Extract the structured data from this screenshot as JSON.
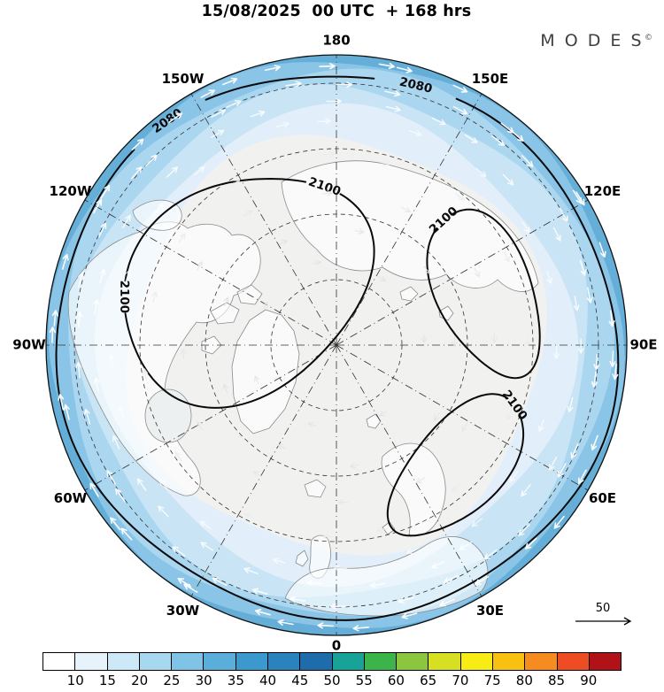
{
  "header": {
    "title": "15/08/2025  00 UTC  + 168 hrs",
    "brand": "M O D E S",
    "brand_mark": "©"
  },
  "map": {
    "longitude_labels": [
      "180",
      "150W",
      "150E",
      "120W",
      "120E",
      "90W",
      "90E",
      "60W",
      "60E",
      "30W",
      "30E",
      "0"
    ],
    "contour_labels": {
      "outer": "2080",
      "inner": "2100"
    },
    "reference_arrow": {
      "label": "50"
    }
  },
  "colorbar": {
    "tick_labels": [
      "10",
      "15",
      "20",
      "25",
      "30",
      "35",
      "40",
      "45",
      "50",
      "55",
      "60",
      "65",
      "70",
      "75",
      "80",
      "85",
      "90"
    ],
    "segment_colors": [
      "#ffffff",
      "#e6f3fb",
      "#cde8f7",
      "#a8d8f0",
      "#7fc4e6",
      "#59afda",
      "#3c99cd",
      "#2a83bd",
      "#1d6dac",
      "#17a398",
      "#3bb54a",
      "#8cc63e",
      "#d7df23",
      "#f7ec13",
      "#f8c112",
      "#f68b1f",
      "#ee4d23",
      "#b01217"
    ]
  },
  "chart_data": {
    "type": "heatmap",
    "title": "15/08/2025 00 UTC + 168 hrs",
    "projection": "north-polar-stereographic",
    "longitude_ticks": [
      "180",
      "150W",
      "150E",
      "120W",
      "120E",
      "90W",
      "90E",
      "60W",
      "60E",
      "30W",
      "30E",
      "0"
    ],
    "contour_levels": [
      2080,
      2100
    ],
    "shading_levels": [
      10,
      15,
      20,
      25,
      30,
      35,
      40,
      45,
      50,
      55,
      60,
      65,
      70,
      75,
      80,
      85,
      90
    ],
    "shading_colors": [
      "#ffffff",
      "#e6f3fb",
      "#cde8f7",
      "#a8d8f0",
      "#7fc4e6",
      "#59afda",
      "#3c99cd",
      "#2a83bd",
      "#1d6dac",
      "#17a398",
      "#3bb54a",
      "#8cc63e",
      "#d7df23",
      "#f7ec13",
      "#f8c112",
      "#f68b1f",
      "#ee4d23",
      "#b01217"
    ],
    "reference_vector": 50,
    "legend_position": "bottom"
  }
}
